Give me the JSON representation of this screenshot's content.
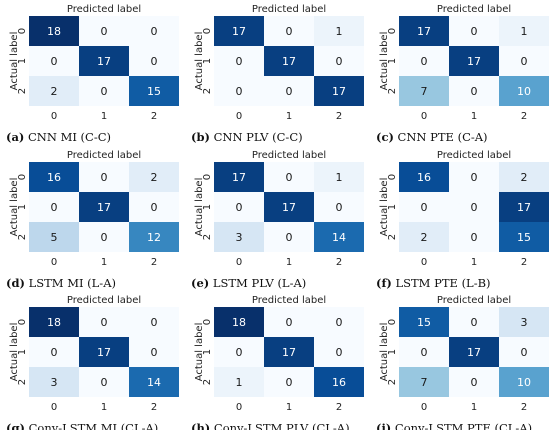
{
  "chart_data": [
    {
      "type": "heatmap",
      "caption": "(a) CNN MI (C-C)",
      "title": "Predicted label",
      "ylabel": "Actual label",
      "xticks": [
        "0",
        "1",
        "2"
      ],
      "yticks": [
        "0",
        "1",
        "2"
      ],
      "matrix": [
        [
          18,
          0,
          0
        ],
        [
          0,
          17,
          0
        ],
        [
          2,
          0,
          15
        ]
      ]
    },
    {
      "type": "heatmap",
      "caption": "(b) CNN PLV (C-C)",
      "title": "Predicted label",
      "ylabel": "Actual label",
      "xticks": [
        "0",
        "1",
        "2"
      ],
      "yticks": [
        "0",
        "1",
        "2"
      ],
      "matrix": [
        [
          17,
          0,
          1
        ],
        [
          0,
          17,
          0
        ],
        [
          0,
          0,
          17
        ]
      ]
    },
    {
      "type": "heatmap",
      "caption": "(c) CNN PTE (C-A)",
      "title": "Predicted label",
      "ylabel": "Actual label",
      "xticks": [
        "0",
        "1",
        "2"
      ],
      "yticks": [
        "0",
        "1",
        "2"
      ],
      "matrix": [
        [
          17,
          0,
          1
        ],
        [
          0,
          17,
          0
        ],
        [
          7,
          0,
          10
        ]
      ]
    },
    {
      "type": "heatmap",
      "caption": "(d) LSTM MI (L-A)",
      "title": "Predicted label",
      "ylabel": "Actual label",
      "xticks": [
        "0",
        "1",
        "2"
      ],
      "yticks": [
        "0",
        "1",
        "2"
      ],
      "matrix": [
        [
          16,
          0,
          2
        ],
        [
          0,
          17,
          0
        ],
        [
          5,
          0,
          12
        ]
      ]
    },
    {
      "type": "heatmap",
      "caption": "(e) LSTM PLV (L-A)",
      "title": "Predicted label",
      "ylabel": "Actual label",
      "xticks": [
        "0",
        "1",
        "2"
      ],
      "yticks": [
        "0",
        "1",
        "2"
      ],
      "matrix": [
        [
          17,
          0,
          1
        ],
        [
          0,
          17,
          0
        ],
        [
          3,
          0,
          14
        ]
      ]
    },
    {
      "type": "heatmap",
      "caption": "(f) LSTM PTE (L-B)",
      "title": "Predicted label",
      "ylabel": "Actual label",
      "xticks": [
        "0",
        "1",
        "2"
      ],
      "yticks": [
        "0",
        "1",
        "2"
      ],
      "matrix": [
        [
          16,
          0,
          2
        ],
        [
          0,
          0,
          17
        ],
        [
          2,
          0,
          15
        ]
      ]
    },
    {
      "type": "heatmap",
      "caption": "(g) Conv-LSTM MI (CL-A)",
      "title": "Predicted label",
      "ylabel": "Actual label",
      "xticks": [
        "0",
        "1",
        "2"
      ],
      "yticks": [
        "0",
        "1",
        "2"
      ],
      "matrix": [
        [
          18,
          0,
          0
        ],
        [
          0,
          17,
          0
        ],
        [
          3,
          0,
          14
        ]
      ]
    },
    {
      "type": "heatmap",
      "caption": "(h) Conv-LSTM PLV (CL-A)",
      "title": "Predicted label",
      "ylabel": "Actual label",
      "xticks": [
        "0",
        "1",
        "2"
      ],
      "yticks": [
        "0",
        "1",
        "2"
      ],
      "matrix": [
        [
          18,
          0,
          0
        ],
        [
          0,
          17,
          0
        ],
        [
          1,
          0,
          16
        ]
      ]
    },
    {
      "type": "heatmap",
      "caption": "(i) Conv-LSTM PTE (CL-A)",
      "title": "Predicted label",
      "ylabel": "Actual label",
      "xticks": [
        "0",
        "1",
        "2"
      ],
      "yticks": [
        "0",
        "1",
        "2"
      ],
      "matrix": [
        [
          15,
          0,
          3
        ],
        [
          0,
          17,
          0
        ],
        [
          7,
          0,
          10
        ]
      ]
    }
  ],
  "colormap": "Blues",
  "color_range": [
    0,
    18
  ]
}
